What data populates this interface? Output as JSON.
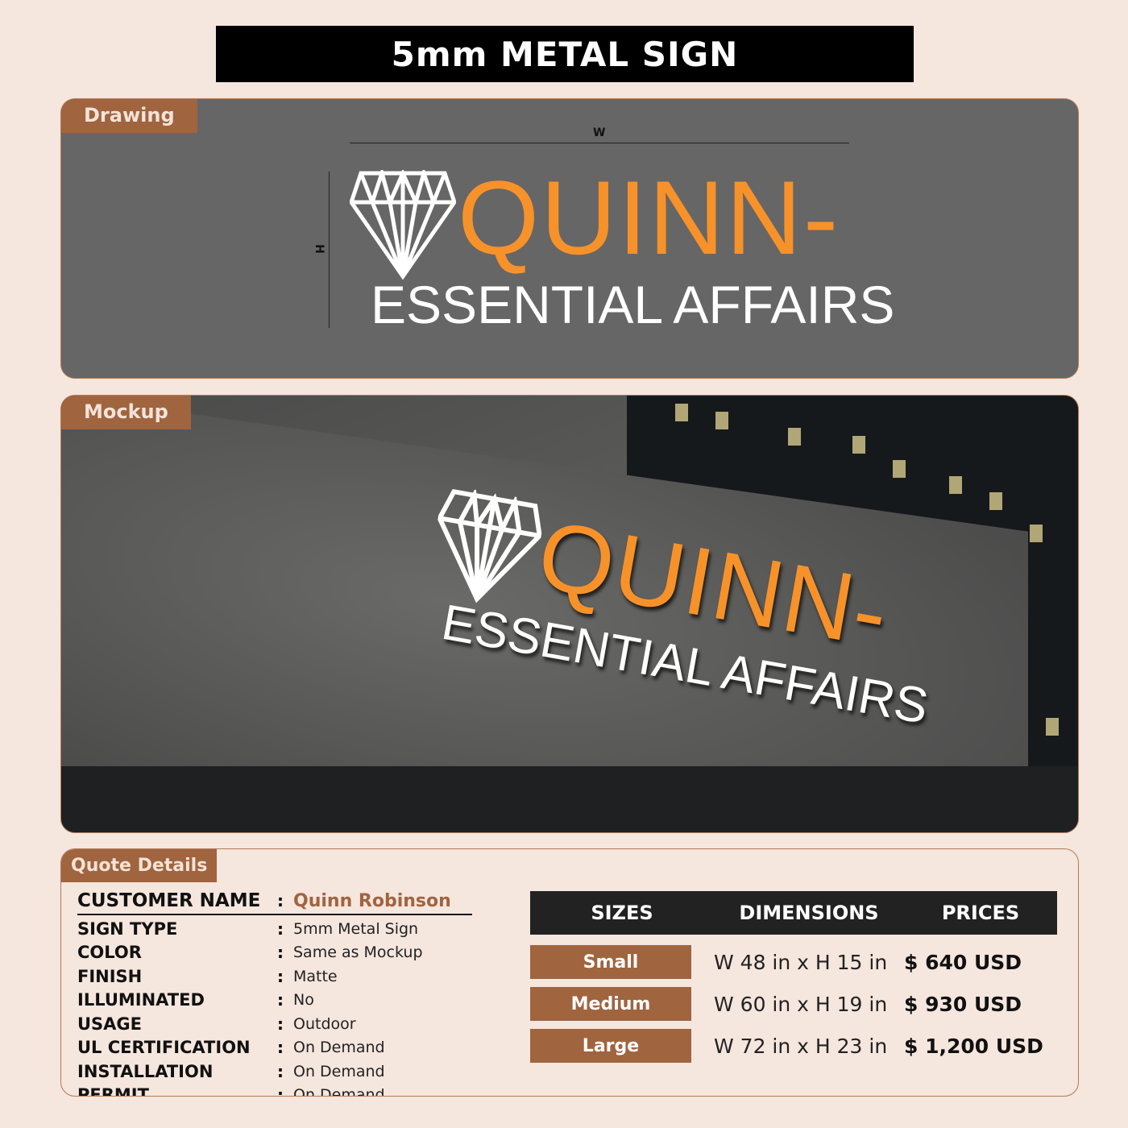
{
  "title": "5mm METAL SIGN",
  "drawing": {
    "tab": "Drawing",
    "w_label": "W",
    "h_label": "H",
    "logo_line1": "QUINN-",
    "logo_line2": "ESSENTIAL AFFAIRS"
  },
  "mockup": {
    "tab": "Mockup",
    "logo_line1": "QUINN-",
    "logo_line2": "ESSENTIAL AFFAIRS"
  },
  "quote": {
    "tab": "Quote Details",
    "customer": {
      "label": "CUSTOMER NAME",
      "value": "Quinn Robinson"
    },
    "details": [
      {
        "label": "SIGN TYPE",
        "value": "5mm Metal Sign"
      },
      {
        "label": "COLOR",
        "value": "Same as Mockup"
      },
      {
        "label": "FINISH",
        "value": "Matte"
      },
      {
        "label": "ILLUMINATED",
        "value": "No"
      },
      {
        "label": "USAGE",
        "value": "Outdoor"
      },
      {
        "label": "UL CERTIFICATION",
        "value": "On Demand"
      },
      {
        "label": "INSTALLATION",
        "value": "On Demand"
      },
      {
        "label": "PERMIT",
        "value": "On Demand"
      }
    ],
    "table": {
      "headers": [
        "SIZES",
        "DIMENSIONS",
        "PRICES"
      ],
      "rows": [
        {
          "size": "Small",
          "dimensions": "W 48 in x H 15 in",
          "price": "$ 640 USD"
        },
        {
          "size": "Medium",
          "dimensions": "W 60 in x H 19 in",
          "price": "$ 930 USD"
        },
        {
          "size": "Large",
          "dimensions": "W 72 in x H 23 in",
          "price": "$ 1,200 USD"
        }
      ]
    }
  },
  "colors": {
    "accent": "#a0643f",
    "logo_orange": "#f7922a",
    "drawing_bg": "#666666",
    "page_bg": "#f5e6de"
  }
}
